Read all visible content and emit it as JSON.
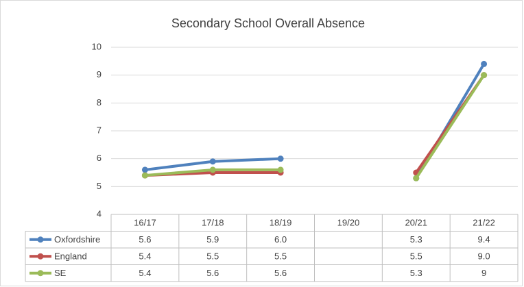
{
  "chart_data": {
    "type": "line",
    "title": "Secondary School Overall Absence",
    "categories": [
      "16/17",
      "17/18",
      "18/19",
      "19/20",
      "20/21",
      "21/22"
    ],
    "series": [
      {
        "name": "Oxfordshire",
        "color": "#4f81bd",
        "values": [
          5.6,
          5.9,
          6.0,
          null,
          5.3,
          9.4
        ],
        "value_labels": [
          "5.6",
          "5.9",
          "6.0",
          null,
          "5.3",
          "9.4"
        ]
      },
      {
        "name": "England",
        "color": "#c0504d",
        "values": [
          5.4,
          5.5,
          5.5,
          null,
          5.5,
          9.0
        ],
        "value_labels": [
          "5.4",
          "5.5",
          "5.5",
          null,
          "5.5",
          "9.0"
        ]
      },
      {
        "name": "SE",
        "color": "#9bbb59",
        "values": [
          5.4,
          5.6,
          5.6,
          null,
          5.3,
          9
        ],
        "value_labels": [
          "5.4",
          "5.6",
          "5.6",
          null,
          "5.3",
          "9"
        ]
      }
    ],
    "ylim": [
      4,
      10
    ],
    "yticks": [
      4,
      5,
      6,
      7,
      8,
      9,
      10
    ],
    "grid": true,
    "data_table": true
  }
}
